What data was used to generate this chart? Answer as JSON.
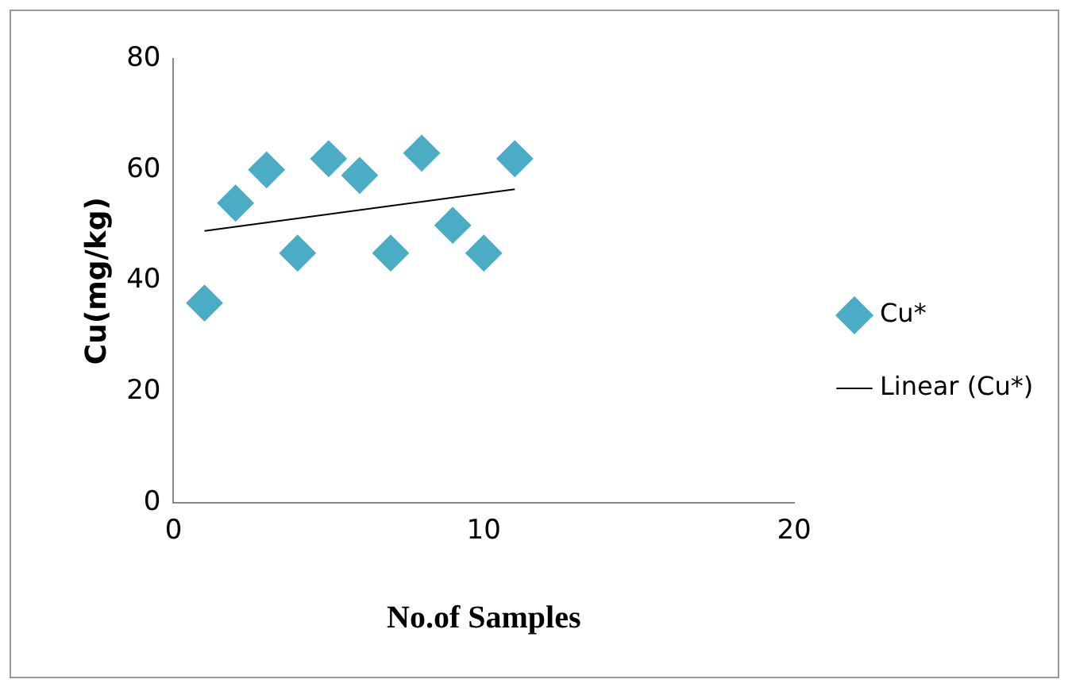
{
  "chart_data": {
    "type": "scatter",
    "xlabel": "No.of Samples",
    "ylabel": "Cu(mg/kg)",
    "xlim": [
      0,
      20
    ],
    "xticks": [
      0,
      10,
      20
    ],
    "ylim": [
      0,
      80
    ],
    "yticks": [
      0,
      20,
      40,
      60,
      80
    ],
    "grid": false,
    "legend": "right",
    "marker": "diamond",
    "series": [
      {
        "name": "Cu*",
        "color": "#4bacc6",
        "x": [
          1,
          2,
          3,
          4,
          5,
          6,
          7,
          8,
          9,
          10,
          11
        ],
        "values": [
          36,
          54,
          60,
          45,
          62,
          59,
          45,
          63,
          50,
          45,
          62
        ]
      },
      {
        "name": "Linear (Cu*)",
        "type": "line",
        "color": "#000000",
        "marker": "none",
        "x": [
          1,
          11
        ],
        "values": [
          49,
          56.5
        ]
      }
    ]
  }
}
